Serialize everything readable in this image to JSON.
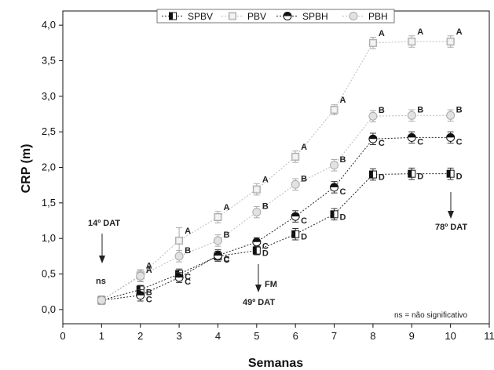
{
  "chart_data": {
    "type": "line",
    "xlabel": "Semanas",
    "ylabel": "CRP (m)",
    "xlim": [
      0,
      11
    ],
    "ylim": [
      -0.2,
      4.2
    ],
    "x_ticks": [
      "0",
      "1",
      "2",
      "3",
      "4",
      "5",
      "6",
      "7",
      "8",
      "9",
      "10",
      "11"
    ],
    "y_ticks": [
      "0,0",
      "0,5",
      "1,0",
      "1,5",
      "2,0",
      "2,5",
      "3,0",
      "3,5",
      "4,0"
    ],
    "y_tick_values": [
      0,
      0.5,
      1.0,
      1.5,
      2.0,
      2.5,
      3.0,
      3.5,
      4.0
    ],
    "grid": false,
    "legend_position": "top",
    "x": [
      1,
      2,
      3,
      4,
      5,
      6,
      7,
      8,
      9,
      10
    ],
    "series": [
      {
        "name": "SPBV",
        "marker": "square-half-black",
        "color": "#111111",
        "values": [
          0.13,
          0.28,
          0.5,
          0.75,
          0.83,
          1.06,
          1.34,
          1.9,
          1.91,
          1.91
        ],
        "errors": [
          0.06,
          0.06,
          0.07,
          0.07,
          0.06,
          0.08,
          0.08,
          0.08,
          0.08,
          0.08
        ],
        "letters": [
          "",
          "B",
          "C",
          "C",
          "D",
          "D",
          "D",
          "D",
          "D",
          "D"
        ]
      },
      {
        "name": "PBV",
        "marker": "square-light",
        "color": "#bbbbbb",
        "values": [
          0.13,
          0.48,
          0.97,
          1.3,
          1.69,
          2.15,
          2.81,
          3.75,
          3.77,
          3.77
        ],
        "errors": [
          0.06,
          0.08,
          0.18,
          0.08,
          0.08,
          0.08,
          0.07,
          0.08,
          0.08,
          0.08
        ],
        "letters": [
          "",
          "A",
          "A",
          "A",
          "A",
          "A",
          "A",
          "A",
          "A",
          "A"
        ]
      },
      {
        "name": "SPBH",
        "marker": "circle-half-black",
        "color": "#111111",
        "values": [
          0.13,
          0.2,
          0.45,
          0.76,
          0.95,
          1.31,
          1.72,
          2.4,
          2.42,
          2.42
        ],
        "errors": [
          0.06,
          0.08,
          0.07,
          0.08,
          0.06,
          0.08,
          0.08,
          0.08,
          0.08,
          0.08
        ],
        "letters": [
          "",
          "C",
          "C",
          "C",
          "C",
          "C",
          "C",
          "C",
          "C",
          "C"
        ]
      },
      {
        "name": "PBH",
        "marker": "circle-light",
        "color": "#bbbbbb",
        "values": [
          0.13,
          0.47,
          0.75,
          0.97,
          1.37,
          1.76,
          2.03,
          2.72,
          2.73,
          2.73
        ],
        "errors": [
          0.06,
          0.08,
          0.08,
          0.08,
          0.08,
          0.08,
          0.08,
          0.08,
          0.08,
          0.08
        ],
        "letters": [
          "",
          "A",
          "B",
          "B",
          "B",
          "B",
          "B",
          "B",
          "B",
          "B"
        ]
      }
    ],
    "annotations": {
      "ns_label": "ns",
      "dat14": "14º DAT",
      "fm": "FM",
      "dat49": "49º DAT",
      "dat78": "78º DAT",
      "ns_note": "ns = não significativo"
    }
  }
}
